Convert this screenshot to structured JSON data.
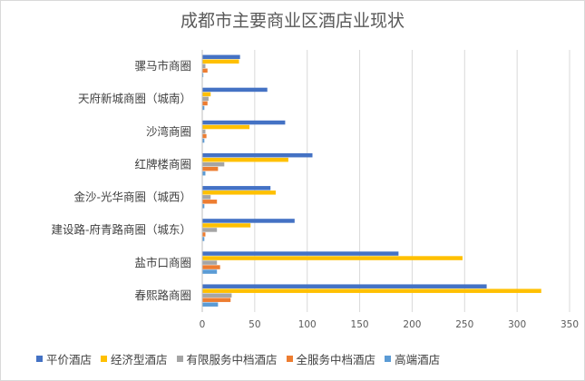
{
  "chart_data": {
    "type": "bar",
    "orientation": "horizontal",
    "title": "成都市主要商业区酒店业现状",
    "categories": [
      "春熙路商圈",
      "盐市口商圈",
      "建设路-府青路商圈（城东）",
      "金沙-光华商圈（城西）",
      "红牌楼商圈",
      "沙湾商圈",
      "天府新城商圈（城南）",
      "骡马市商圈"
    ],
    "series": [
      {
        "name": "平价酒店",
        "color": "#4472c4",
        "values": [
          271,
          187,
          88,
          65,
          105,
          79,
          62,
          36
        ]
      },
      {
        "name": "经济型酒店",
        "color": "#ffc000",
        "values": [
          323,
          248,
          46,
          70,
          82,
          45,
          8,
          35
        ]
      },
      {
        "name": "有限服务中档酒店",
        "color": "#a5a5a5",
        "values": [
          28,
          14,
          14,
          8,
          21,
          3,
          6,
          3
        ]
      },
      {
        "name": "全服务中档酒店",
        "color": "#ed7d31",
        "values": [
          27,
          17,
          3,
          14,
          15,
          4,
          5,
          5
        ]
      },
      {
        "name": "高端酒店",
        "color": "#5b9bd5",
        "values": [
          15,
          14,
          2,
          2,
          3,
          2,
          2,
          1
        ]
      }
    ],
    "xlim": [
      0,
      350
    ],
    "xticks": [
      "0",
      "50",
      "100",
      "150",
      "200",
      "250",
      "300",
      "350"
    ],
    "grid": true,
    "legend_position": "bottom"
  }
}
